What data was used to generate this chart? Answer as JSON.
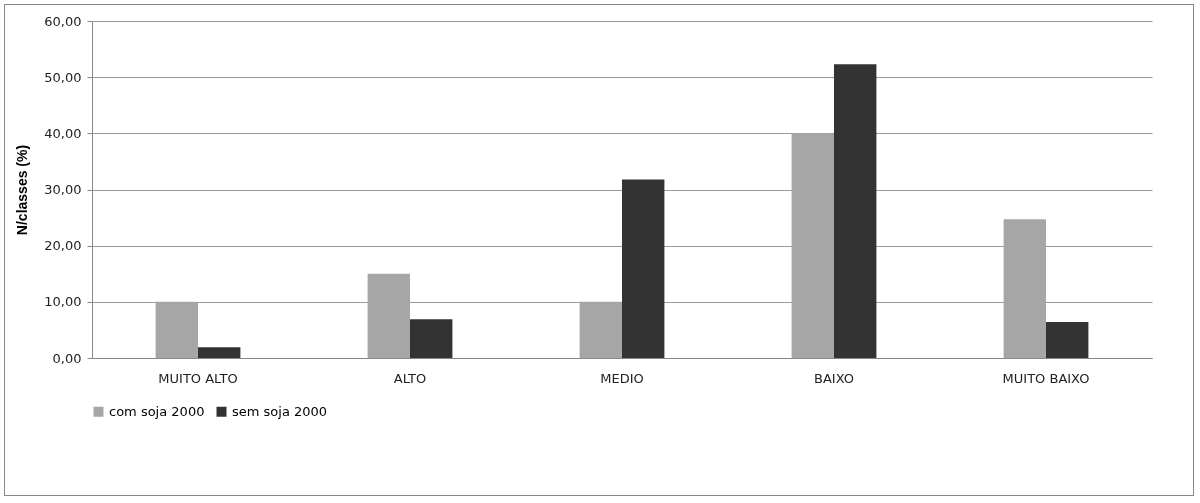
{
  "chart_data": {
    "type": "bar",
    "ylabel": "N/classes (%)",
    "categories": [
      "MUITO ALTO",
      "ALTO",
      "MEDIO",
      "BAIXO",
      "MUITO BAIXO"
    ],
    "series": [
      {
        "name": "com soja 2000",
        "color": "#a6a6a6",
        "values": [
          10,
          15,
          10,
          40,
          24.7
        ]
      },
      {
        "name": "sem soja 2000",
        "color": "#333333",
        "values": [
          1.9,
          6.9,
          31.8,
          52.3,
          6.4
        ]
      }
    ],
    "ylim": [
      0,
      60
    ],
    "yticks": [
      {
        "value": 0,
        "label": "0,00"
      },
      {
        "value": 10,
        "label": "10,00"
      },
      {
        "value": 20,
        "label": "20,00"
      },
      {
        "value": 30,
        "label": "30,00"
      },
      {
        "value": 40,
        "label": "40,00"
      },
      {
        "value": 50,
        "label": "50,00"
      },
      {
        "value": 60,
        "label": "60,00"
      }
    ],
    "grid": "y",
    "legend": "bottom"
  }
}
